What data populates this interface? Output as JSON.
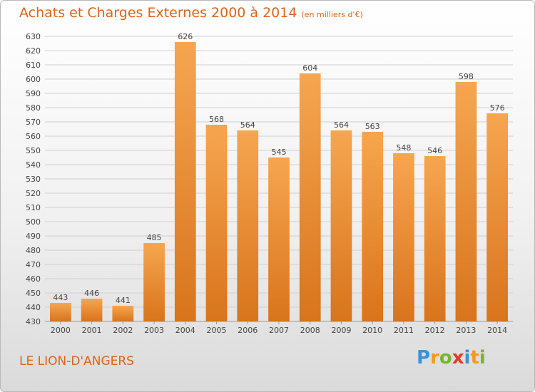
{
  "header": {
    "title": "Achats et Charges Externes 2000 à 2014",
    "subtitle": "(en milliers d'€)"
  },
  "footer": {
    "city": "LE LION-D'ANGERS",
    "logo": [
      "P",
      "r",
      "o",
      "x",
      "i",
      "t",
      "i"
    ]
  },
  "chart_data": {
    "type": "bar",
    "title": "Achats et Charges Externes 2000 à 2014",
    "subtitle": "(en milliers d'€)",
    "categories": [
      "2000",
      "2001",
      "2002",
      "2003",
      "2004",
      "2005",
      "2006",
      "2007",
      "2008",
      "2009",
      "2010",
      "2011",
      "2012",
      "2013",
      "2014"
    ],
    "values": [
      443,
      446,
      441,
      485,
      626,
      568,
      564,
      545,
      604,
      564,
      563,
      548,
      546,
      598,
      576
    ],
    "ylim": [
      430,
      630
    ],
    "ytick_step": 10,
    "grid": true,
    "bar_color": "#f08a2a"
  }
}
